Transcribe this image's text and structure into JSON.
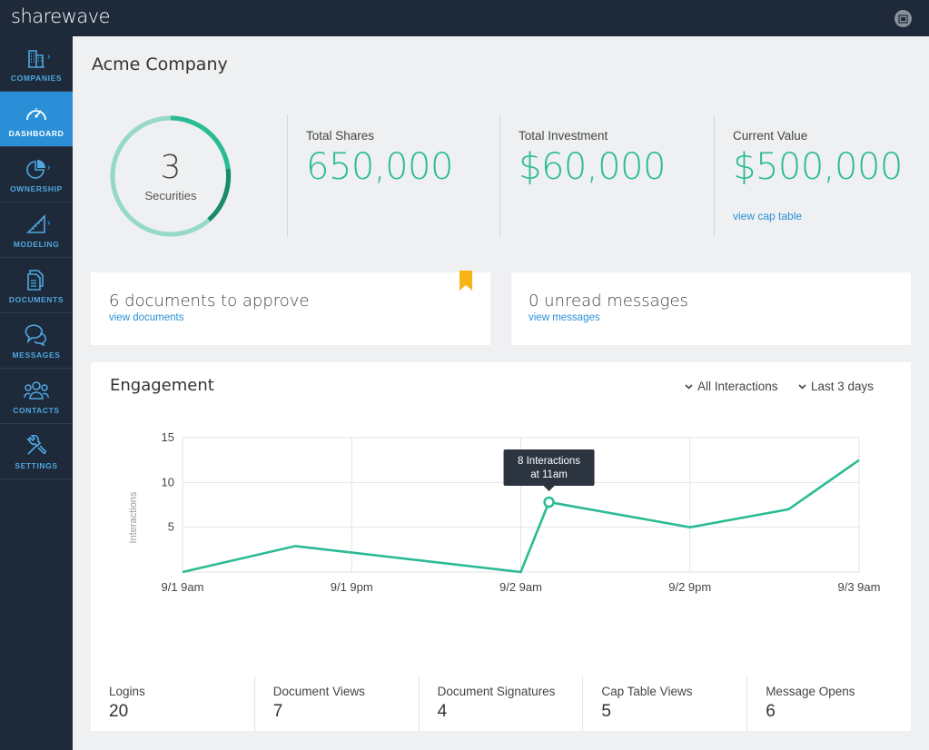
{
  "app": {
    "logo": "sharewave"
  },
  "sidebar": {
    "items": [
      {
        "label": "COMPANIES",
        "icon": "building-icon",
        "chevron": true,
        "active": false
      },
      {
        "label": "DASHBOARD",
        "icon": "speedometer-icon",
        "chevron": false,
        "active": true
      },
      {
        "label": "OWNERSHIP",
        "icon": "pie-chart-icon",
        "chevron": true,
        "active": false
      },
      {
        "label": "MODELING",
        "icon": "ruler-triangle-icon",
        "chevron": true,
        "active": false
      },
      {
        "label": "DOCUMENTS",
        "icon": "documents-icon",
        "chevron": false,
        "active": false
      },
      {
        "label": "MESSAGES",
        "icon": "chat-bubbles-icon",
        "chevron": false,
        "active": false
      },
      {
        "label": "CONTACTS",
        "icon": "people-icon",
        "chevron": false,
        "active": false
      },
      {
        "label": "SETTINGS",
        "icon": "wrench-icon",
        "chevron": false,
        "active": false
      }
    ]
  },
  "header": {
    "company": "Acme Company"
  },
  "summary": {
    "securities_count": "3",
    "securities_label": "Securities",
    "stats": [
      {
        "label": "Total Shares",
        "value": "650,000"
      },
      {
        "label": "Total Investment",
        "value": "$60,000"
      },
      {
        "label": "Current Value",
        "value": "$500,000",
        "link": "view cap table"
      }
    ]
  },
  "cards": {
    "documents": {
      "title": "6 documents to approve",
      "link": "view documents"
    },
    "messages": {
      "title": "0 unread messages",
      "link": "view messages"
    }
  },
  "engagement": {
    "title": "Engagement",
    "filter_interactions": "All Interactions",
    "filter_range": "Last 3 days",
    "tooltip_line1": "8 Interactions",
    "tooltip_line2": "at 11am",
    "metrics": [
      {
        "label": "Logins",
        "value": "20"
      },
      {
        "label": "Document Views",
        "value": "7"
      },
      {
        "label": "Document Signatures",
        "value": "4"
      },
      {
        "label": "Cap Table Views",
        "value": "5"
      },
      {
        "label": "Message Opens",
        "value": "6"
      }
    ]
  },
  "colors": {
    "accent": "#2bbb94",
    "accent_dark": "#1a8a6c",
    "ring_light": "#96d9c6",
    "link": "#2a8fd6",
    "nav_bg": "#1e2a3a"
  },
  "chart_data": {
    "type": "line",
    "ylabel": "Interactions",
    "xlabel": "",
    "x_ticks": [
      "9/1 9am",
      "9/1 9pm",
      "9/2 9am",
      "9/2 9pm",
      "9/3 9am"
    ],
    "y_ticks": [
      "15",
      "10",
      "5"
    ],
    "ylim": [
      0,
      15
    ],
    "series": [
      {
        "x": [
          "9/1 9am",
          "9/1 5pm",
          "9/2 9am",
          "9/2 11am",
          "9/2 9pm",
          "9/3 4am",
          "9/3 9am"
        ],
        "values": [
          0,
          2.9,
          0,
          7.8,
          5,
          7,
          12.5
        ]
      }
    ],
    "highlight": {
      "x": "9/2 11am",
      "value": 7.8
    },
    "grid": true
  }
}
